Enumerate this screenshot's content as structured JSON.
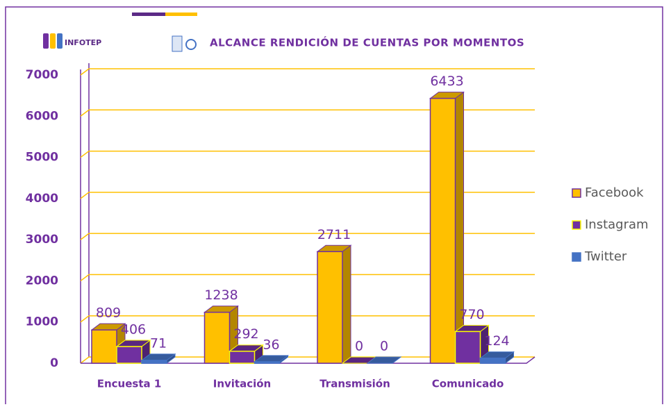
{
  "chart_data": {
    "type": "bar3d",
    "logo_text": "INFOTEP",
    "title": "ALCANCE RENDICIÓN DE CUENTAS POR MOMENTOS",
    "categories": [
      "Encuesta 1",
      "Invitación",
      "Transmisión",
      "Comunicado"
    ],
    "series": [
      {
        "name": "Facebook",
        "color": "#ffc000",
        "border": "#7030a0",
        "values": [
          809,
          1238,
          2711,
          6433
        ]
      },
      {
        "name": "Instagram",
        "color": "#7030a0",
        "border": "#ffff00",
        "values": [
          406,
          292,
          0,
          770
        ]
      },
      {
        "name": "Twitter",
        "color": "#4472c4",
        "border": "#4472c4",
        "values": [
          71,
          36,
          0,
          124
        ]
      }
    ],
    "ylim": [
      0,
      7000
    ],
    "yticks": [
      0,
      1000,
      2000,
      3000,
      4000,
      5000,
      6000,
      7000
    ],
    "grid": true,
    "grid_color": "#ffc000",
    "legend": "right"
  }
}
